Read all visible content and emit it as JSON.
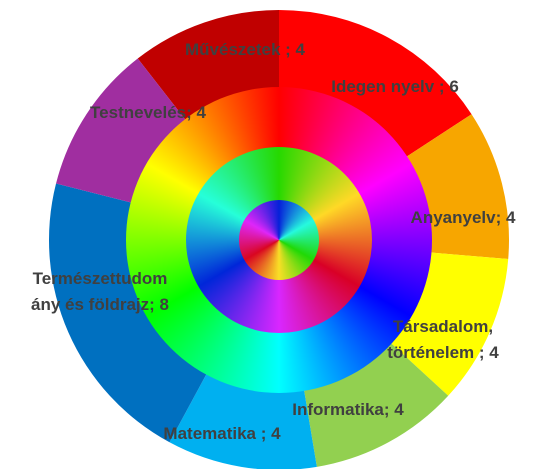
{
  "chart_data": {
    "type": "donut",
    "values": [
      4,
      6,
      4,
      4,
      4,
      4,
      8,
      4
    ],
    "value_labels": [
      "Művészetek ; 4",
      "Idegen nyelv ; 6",
      "Anyanyelv; 4",
      "Társadalom,\ntörténelem ; 4",
      "Informatika; 4",
      "Matematika ; 4",
      "Természettudom\nány és földrajz; 8",
      "Testnevelés; 4"
    ],
    "colors": [
      "#c00000",
      "#ff0000",
      "#f7a600",
      "#ffff00",
      "#92d050",
      "#00b0f0",
      "#0070c0",
      "#a02ea0"
    ]
  }
}
